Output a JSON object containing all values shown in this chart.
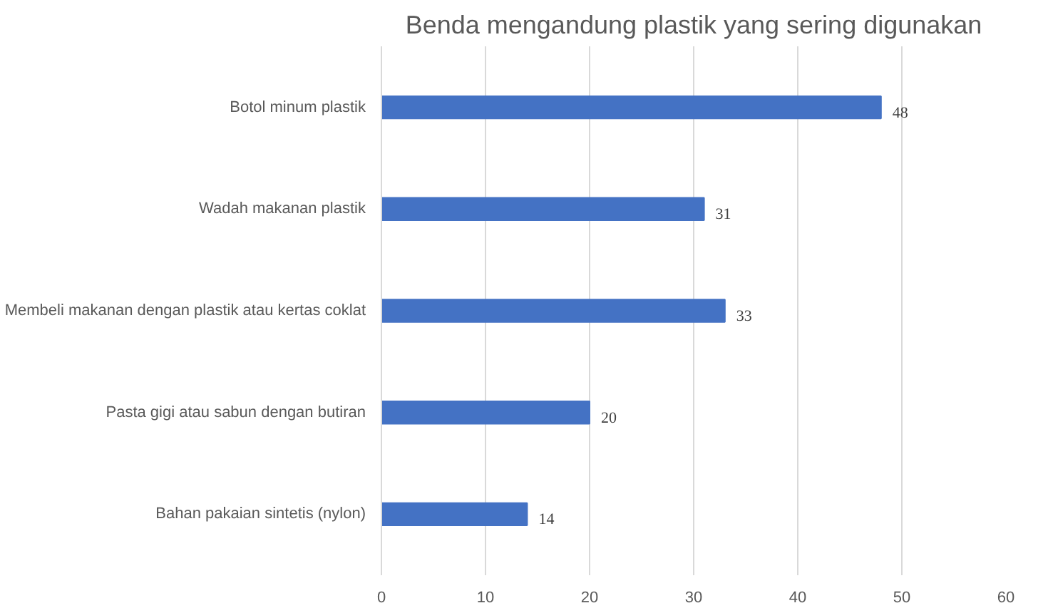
{
  "chart_data": {
    "type": "bar",
    "orientation": "horizontal",
    "title": "Benda mengandung plastik yang sering digunakan",
    "categories": [
      "Botol minum plastik",
      "Wadah makanan plastik",
      "Membeli makanan dengan plastik atau kertas coklat",
      "Pasta gigi atau sabun dengan butiran",
      "Bahan pakaian sintetis (nylon)"
    ],
    "values": [
      48,
      31,
      33,
      20,
      14
    ],
    "color": "#4472c4",
    "xlim": [
      0,
      60
    ],
    "xticks": [
      0,
      10,
      20,
      30,
      40,
      50,
      60
    ],
    "grid": "x",
    "data_labels": true
  }
}
